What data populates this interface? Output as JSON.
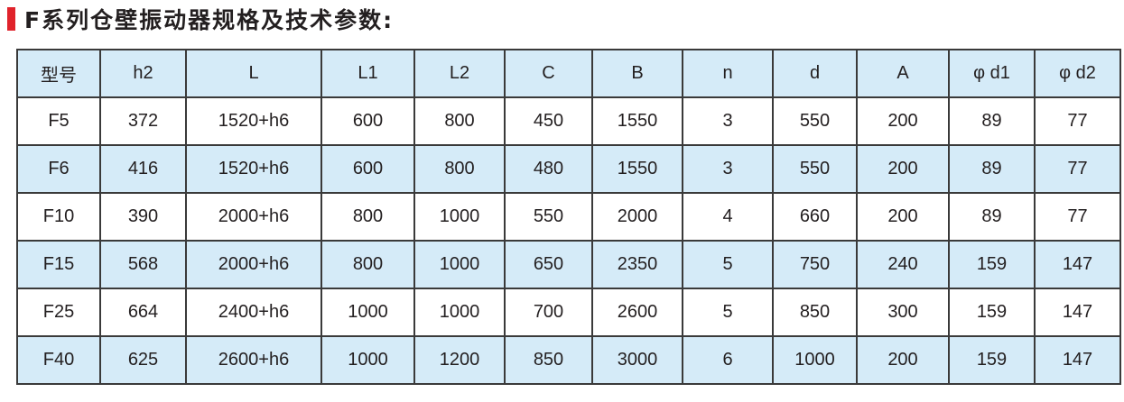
{
  "title": "F系列仓壁振动器规格及技术参数:",
  "colors": {
    "accent": "#e0232b",
    "header_bg": "#d5ebf8",
    "border": "#3a3a3a"
  },
  "table": {
    "headers": [
      "型号",
      "h2",
      "L",
      "L1",
      "L2",
      "C",
      "B",
      "n",
      "d",
      "A",
      "φ d1",
      "φ d2"
    ],
    "rows": [
      [
        "F5",
        "372",
        "1520+h6",
        "600",
        "800",
        "450",
        "1550",
        "3",
        "550",
        "200",
        "89",
        "77"
      ],
      [
        "F6",
        "416",
        "1520+h6",
        "600",
        "800",
        "480",
        "1550",
        "3",
        "550",
        "200",
        "89",
        "77"
      ],
      [
        "F10",
        "390",
        "2000+h6",
        "800",
        "1000",
        "550",
        "2000",
        "4",
        "660",
        "200",
        "89",
        "77"
      ],
      [
        "F15",
        "568",
        "2000+h6",
        "800",
        "1000",
        "650",
        "2350",
        "5",
        "750",
        "240",
        "159",
        "147"
      ],
      [
        "F25",
        "664",
        "2400+h6",
        "1000",
        "1000",
        "700",
        "2600",
        "5",
        "850",
        "300",
        "159",
        "147"
      ],
      [
        "F40",
        "625",
        "2600+h6",
        "1000",
        "1200",
        "850",
        "3000",
        "6",
        "1000",
        "200",
        "159",
        "147"
      ]
    ]
  }
}
